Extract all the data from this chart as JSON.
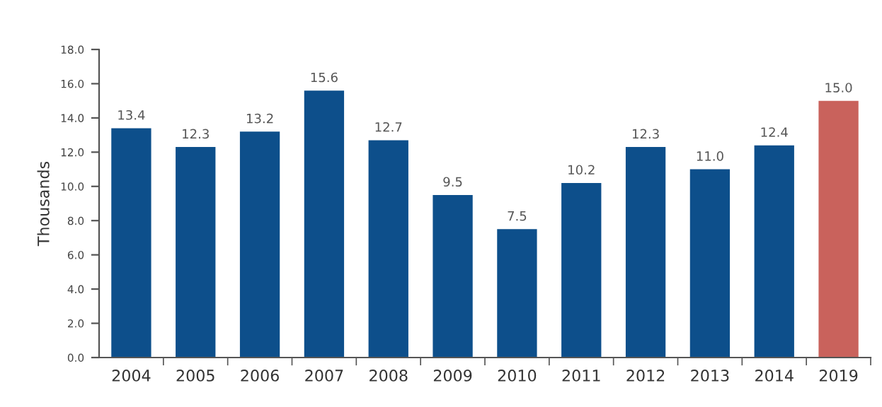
{
  "chart_data": {
    "type": "bar",
    "ylabel": "Thousands",
    "categories": [
      "2004",
      "2005",
      "2006",
      "2007",
      "2008",
      "2009",
      "2010",
      "2011",
      "2012",
      "2013",
      "2014",
      "2019"
    ],
    "values": [
      13.4,
      12.3,
      13.2,
      15.6,
      12.7,
      9.5,
      7.5,
      10.2,
      12.3,
      11.0,
      12.4,
      15.0
    ],
    "value_labels": [
      "13.4",
      "12.3",
      "13.2",
      "15.6",
      "12.7",
      "9.5",
      "7.5",
      "10.2",
      "12.3",
      "11.0",
      "12.4",
      "15.0"
    ],
    "colors": [
      "#0d4f8b",
      "#0d4f8b",
      "#0d4f8b",
      "#0d4f8b",
      "#0d4f8b",
      "#0d4f8b",
      "#0d4f8b",
      "#0d4f8b",
      "#0d4f8b",
      "#0d4f8b",
      "#0d4f8b",
      "#c9625c"
    ],
    "ylim": [
      0,
      18
    ],
    "yticks": [
      {
        "value": 0,
        "label": "0.0"
      },
      {
        "value": 2,
        "label": "2.0"
      },
      {
        "value": 4,
        "label": "4.0"
      },
      {
        "value": 6,
        "label": "6.0"
      },
      {
        "value": 8,
        "label": "8.0"
      },
      {
        "value": 10,
        "label": "10.0"
      },
      {
        "value": 12,
        "label": "12.0"
      },
      {
        "value": 14,
        "label": "14.0"
      },
      {
        "value": 16,
        "label": "16.0"
      },
      {
        "value": 18,
        "label": "18.0"
      }
    ],
    "grid": false
  }
}
